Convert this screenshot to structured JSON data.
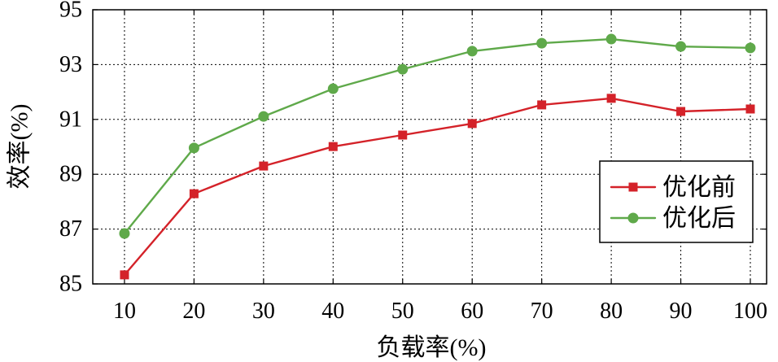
{
  "chart_data": {
    "type": "line",
    "x": [
      10,
      20,
      30,
      40,
      50,
      60,
      70,
      80,
      90,
      100
    ],
    "xticks": [
      10,
      20,
      30,
      40,
      50,
      60,
      70,
      80,
      90,
      100
    ],
    "yticks": [
      85,
      87,
      89,
      91,
      93,
      95
    ],
    "xlabel": "负载率(%)",
    "ylabel": "效率(%)",
    "xlim": [
      5.44,
      102.34
    ],
    "ylim": [
      85,
      95
    ],
    "grid": true,
    "legend": "lower-right",
    "series": [
      {
        "name": "优化前",
        "color": "#d42229",
        "marker": "square",
        "values": [
          85.33,
          88.29,
          89.3,
          90.01,
          90.43,
          90.85,
          91.53,
          91.77,
          91.29,
          91.38
        ]
      },
      {
        "name": "优化后",
        "color": "#5fa94a",
        "marker": "circle",
        "values": [
          86.84,
          89.96,
          91.11,
          92.12,
          92.83,
          93.49,
          93.78,
          93.93,
          93.66,
          93.61
        ]
      }
    ]
  }
}
